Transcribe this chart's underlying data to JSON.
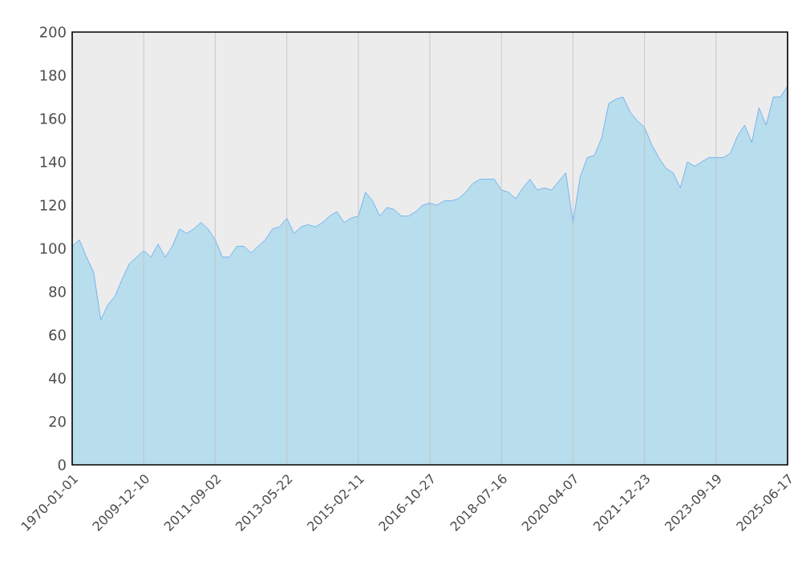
{
  "chart_data": {
    "type": "area",
    "categories": [
      "1970-01-01",
      null,
      null,
      null,
      null,
      null,
      null,
      null,
      null,
      null,
      "2009-12-10",
      null,
      null,
      null,
      null,
      null,
      null,
      null,
      null,
      null,
      "2011-09-02",
      null,
      null,
      null,
      null,
      null,
      null,
      null,
      null,
      null,
      "2013-05-22",
      null,
      null,
      null,
      null,
      null,
      null,
      null,
      null,
      null,
      "2015-02-11",
      null,
      null,
      null,
      null,
      null,
      null,
      null,
      null,
      null,
      "2016-10-27",
      null,
      null,
      null,
      null,
      null,
      null,
      null,
      null,
      null,
      "2018-07-16",
      null,
      null,
      null,
      null,
      null,
      null,
      null,
      null,
      null,
      "2020-04-07",
      null,
      null,
      null,
      null,
      null,
      null,
      null,
      null,
      null,
      "2021-12-23",
      null,
      null,
      null,
      null,
      null,
      null,
      null,
      null,
      null,
      "2023-09-19",
      null,
      null,
      null,
      null,
      null,
      null,
      null,
      null,
      null,
      "2025-06-17"
    ],
    "values": [
      101,
      104,
      96,
      89,
      67,
      74,
      78,
      86,
      93,
      96,
      99,
      96,
      102,
      96,
      101,
      109,
      107,
      109,
      112,
      109,
      104,
      96,
      96,
      101,
      101,
      98,
      101,
      104,
      109,
      110,
      114,
      107,
      110,
      111,
      110,
      112,
      115,
      117,
      112,
      114,
      115,
      126,
      122,
      115,
      119,
      118,
      115,
      115,
      117,
      120,
      121,
      120,
      122,
      122,
      123,
      126,
      130,
      132,
      132,
      132,
      127,
      126,
      123,
      128,
      132,
      127,
      128,
      127,
      131,
      135,
      112,
      133,
      142,
      143,
      151,
      167,
      169,
      170,
      163,
      159,
      156,
      148,
      142,
      137,
      135,
      128,
      140,
      138,
      140,
      142,
      142,
      142,
      144,
      152,
      157,
      149,
      165,
      157,
      170,
      170,
      175
    ],
    "color": "#5ea8f2",
    "ylim": [
      0,
      200
    ],
    "yticks": [
      0,
      20,
      40,
      60,
      80,
      100,
      120,
      140,
      160,
      180,
      200
    ],
    "grid": "x"
  }
}
